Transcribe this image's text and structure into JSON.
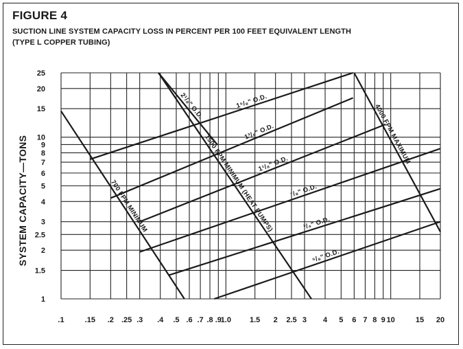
{
  "header": {
    "figure_label": "FIGURE 4",
    "subtitle_line1": "SUCTION LINE SYSTEM CAPACITY LOSS IN PERCENT PER 100 FEET EQUIVALENT LENGTH",
    "subtitle_line2": "(TYPE L COPPER TUBING)"
  },
  "chart_data": {
    "type": "line",
    "title": "SUCTION LINE SYSTEM CAPACITY LOSS IN PERCENT PER 100 FEET EQUIVALENT LENGTH",
    "ylabel": "SYSTEM CAPACITY—TONS",
    "xlabel": "",
    "x_scale": "log",
    "y_scale": "log",
    "xlim": [
      0.1,
      20
    ],
    "ylim": [
      1,
      25
    ],
    "grid": true,
    "x_ticks": [
      {
        "v": 0.1,
        "t": ".1"
      },
      {
        "v": 0.15,
        "t": ".15"
      },
      {
        "v": 0.2,
        "t": ".2"
      },
      {
        "v": 0.25,
        "t": ".25"
      },
      {
        "v": 0.3,
        "t": ".3"
      },
      {
        "v": 0.4,
        "t": ".4"
      },
      {
        "v": 0.5,
        "t": ".5"
      },
      {
        "v": 0.6,
        "t": ".6"
      },
      {
        "v": 0.7,
        "t": ".7"
      },
      {
        "v": 0.8,
        "t": ".8"
      },
      {
        "v": 0.9,
        "t": ".9"
      },
      {
        "v": 1.0,
        "t": "1.0"
      },
      {
        "v": 1.5,
        "t": "1.5"
      },
      {
        "v": 2,
        "t": "2"
      },
      {
        "v": 2.5,
        "t": "2.5"
      },
      {
        "v": 3,
        "t": "3"
      },
      {
        "v": 4,
        "t": "4"
      },
      {
        "v": 5,
        "t": "5"
      },
      {
        "v": 6,
        "t": "6"
      },
      {
        "v": 7,
        "t": "7"
      },
      {
        "v": 8,
        "t": "8"
      },
      {
        "v": 9,
        "t": "9"
      },
      {
        "v": 10,
        "t": "10"
      },
      {
        "v": 15,
        "t": "15"
      },
      {
        "v": 20,
        "t": "20"
      }
    ],
    "y_ticks": [
      {
        "v": 1,
        "t": "1"
      },
      {
        "v": 1.5,
        "t": "1.5"
      },
      {
        "v": 2,
        "t": "2"
      },
      {
        "v": 2.5,
        "t": "2.5"
      },
      {
        "v": 3,
        "t": "3"
      },
      {
        "v": 4,
        "t": "4"
      },
      {
        "v": 5,
        "t": "5"
      },
      {
        "v": 6,
        "t": "6"
      },
      {
        "v": 7,
        "t": "7"
      },
      {
        "v": 8,
        "t": "8"
      },
      {
        "v": 9,
        "t": "9"
      },
      {
        "v": 10,
        "t": "10"
      },
      {
        "v": 15,
        "t": "15"
      },
      {
        "v": 20,
        "t": "20"
      },
      {
        "v": 25,
        "t": "25"
      }
    ],
    "series": [
      {
        "name": "2⅕⅘ O.D.",
        "label": "2¹/₈\" O.D.",
        "points": [
          [
            0.39,
            25
          ],
          [
            0.89,
            8.95
          ]
        ]
      },
      {
        "name": "1⁵/₈\" O.D.",
        "label": "1⁵/₈\" O.D.",
        "points": [
          [
            0.15,
            7.3
          ],
          [
            5.9,
            25
          ]
        ]
      },
      {
        "name": "1³/₈\" O.D.",
        "label": "1³/₈\" O.D.",
        "points": [
          [
            0.2,
            4.2
          ],
          [
            5.9,
            17.5
          ]
        ]
      },
      {
        "name": "1¹/₈\" O.D.",
        "label": "1¹/₈\" O.D.",
        "points": [
          [
            0.3,
            3.0
          ],
          [
            9.3,
            12.0
          ]
        ]
      },
      {
        "name": "⁷/₈\" O.D.",
        "label": "⁷/₈\" O.D.",
        "points": [
          [
            0.3,
            1.95
          ],
          [
            20,
            8.5
          ]
        ]
      },
      {
        "name": "¾\" O.D.",
        "label": "³/₄\" O.D.",
        "points": [
          [
            0.45,
            1.4
          ],
          [
            20,
            4.8
          ]
        ]
      },
      {
        "name": "⅕⅘\" O.D.",
        "label": "⁵/₈\" O.D.",
        "points": [
          [
            0.85,
            1.0
          ],
          [
            20,
            3.0
          ]
        ]
      },
      {
        "name": "700 FPM MINIMUM",
        "label": "700 FPM MINIMUM",
        "points": [
          [
            0.1,
            14.5
          ],
          [
            0.56,
            1.0
          ]
        ]
      },
      {
        "name": "1500 FPM MINIMUM (HEAT PUMPS)",
        "label": "1500 FPM MINIMUM (HEAT PUMPS)",
        "points": [
          [
            0.39,
            25
          ],
          [
            3.3,
            1.0
          ]
        ]
      },
      {
        "name": "4000 FPM MAXIMUM",
        "label": "4000 FPM MAXIMUM",
        "points": [
          [
            6.0,
            25
          ],
          [
            20,
            2.6
          ]
        ]
      }
    ]
  }
}
